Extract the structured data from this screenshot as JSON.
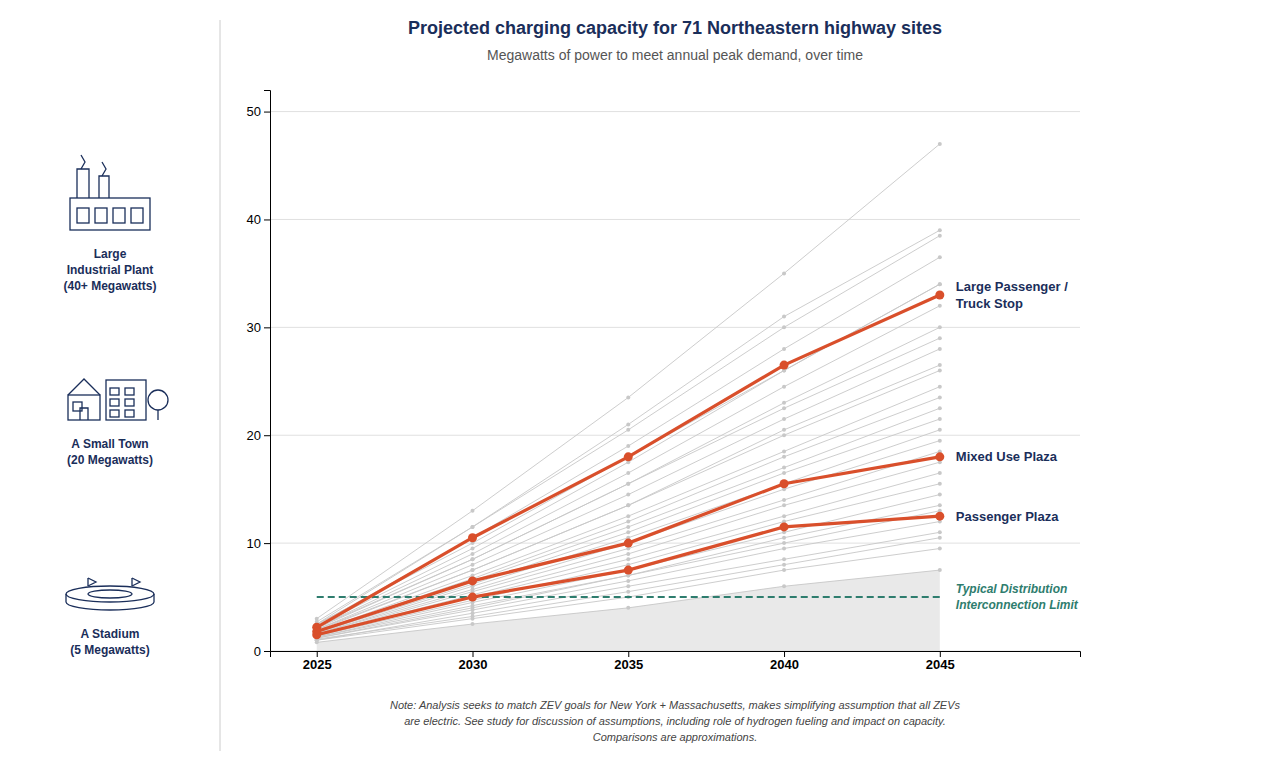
{
  "chart_data": {
    "type": "line",
    "title": "Projected charging capacity for 71 Northeastern highway sites",
    "subtitle": "Megawatts of power to meet annual peak demand, over time",
    "note": "Note: Analysis seeks to match ZEV goals for New York + Massachusetts, makes simplifying assumption that all ZEVs\nare electric. See study for discussion of assumptions, including role of hydrogen fueling and impact on capacity.\nComparisons are approximations.",
    "annotations": [
      "Large\nIndustrial Plant\n(40+ Megawatts)",
      "A Small Town\n(20 Megawatts)",
      "A Stadium\n(5 Megawatts)"
    ],
    "x": [
      2025,
      2030,
      2035,
      2040,
      2045
    ],
    "xlim": [
      2023.5,
      2049.5
    ],
    "xticks": [
      2025,
      2030,
      2035,
      2040,
      2045
    ],
    "ylim": [
      0,
      52
    ],
    "yticks": [
      0,
      10,
      20,
      30,
      40,
      50
    ],
    "grid": true,
    "series": [
      {
        "color": "#c8c8c8",
        "marker": "circle",
        "values": [
          1.0,
          3.5,
          6.0,
          8.5,
          11.0
        ]
      },
      {
        "color": "#c8c8c8",
        "marker": "circle",
        "values": [
          1.2,
          4.0,
          7.0,
          10.0,
          13.0
        ]
      },
      {
        "color": "#c8c8c8",
        "marker": "circle",
        "values": [
          1.3,
          4.5,
          7.5,
          11.0,
          14.5
        ]
      },
      {
        "color": "#c8c8c8",
        "marker": "circle",
        "values": [
          1.4,
          5.0,
          8.5,
          12.5,
          16.5
        ]
      },
      {
        "color": "#c8c8c8",
        "marker": "circle",
        "values": [
          1.5,
          5.5,
          9.5,
          14.0,
          18.5
        ]
      },
      {
        "color": "#c8c8c8",
        "marker": "circle",
        "values": [
          1.6,
          6.0,
          10.5,
          15.5,
          20.5
        ]
      },
      {
        "color": "#c8c8c8",
        "marker": "circle",
        "values": [
          1.7,
          6.5,
          11.5,
          17.0,
          22.5
        ]
      },
      {
        "color": "#c8c8c8",
        "marker": "circle",
        "values": [
          1.8,
          7.0,
          12.5,
          18.5,
          24.5
        ]
      },
      {
        "color": "#c8c8c8",
        "marker": "circle",
        "values": [
          1.9,
          7.5,
          13.5,
          20.0,
          26.0
        ]
      },
      {
        "color": "#c8c8c8",
        "marker": "circle",
        "values": [
          2.0,
          8.0,
          14.5,
          21.5,
          28.0
        ]
      },
      {
        "color": "#c8c8c8",
        "marker": "circle",
        "values": [
          2.1,
          8.5,
          15.5,
          23.0,
          30.0
        ]
      },
      {
        "color": "#c8c8c8",
        "marker": "circle",
        "values": [
          2.2,
          9.0,
          16.5,
          24.5,
          32.0
        ]
      },
      {
        "color": "#c8c8c8",
        "marker": "circle",
        "values": [
          2.3,
          9.5,
          17.5,
          26.0,
          34.0
        ]
      },
      {
        "color": "#c8c8c8",
        "marker": "circle",
        "values": [
          2.4,
          10.5,
          19.0,
          28.0,
          36.5
        ]
      },
      {
        "color": "#c8c8c8",
        "marker": "circle",
        "values": [
          2.5,
          11.5,
          20.5,
          30.0,
          38.5
        ]
      },
      {
        "color": "#c8c8c8",
        "marker": "circle",
        "values": [
          0.8,
          2.5,
          4.0,
          6.0,
          7.5
        ]
      },
      {
        "color": "#c8c8c8",
        "marker": "circle",
        "values": [
          1.0,
          3.0,
          5.0,
          7.5,
          9.5
        ]
      },
      {
        "color": "#c8c8c8",
        "marker": "circle",
        "values": [
          1.1,
          3.2,
          5.5,
          8.0,
          10.5
        ]
      },
      {
        "color": "#c8c8c8",
        "marker": "circle",
        "values": [
          1.2,
          3.8,
          6.5,
          9.5,
          12.0
        ]
      },
      {
        "color": "#c8c8c8",
        "marker": "circle",
        "values": [
          1.3,
          4.2,
          7.0,
          10.5,
          13.5
        ]
      },
      {
        "color": "#c8c8c8",
        "marker": "circle",
        "values": [
          1.4,
          4.7,
          8.0,
          12.0,
          15.5
        ]
      },
      {
        "color": "#c8c8c8",
        "marker": "circle",
        "values": [
          1.5,
          5.2,
          9.0,
          13.5,
          17.5
        ]
      },
      {
        "color": "#c8c8c8",
        "marker": "circle",
        "values": [
          1.6,
          5.7,
          10.0,
          15.0,
          19.5
        ]
      },
      {
        "color": "#c8c8c8",
        "marker": "circle",
        "values": [
          1.7,
          6.2,
          11.0,
          16.5,
          21.5
        ]
      },
      {
        "color": "#c8c8c8",
        "marker": "circle",
        "values": [
          1.8,
          6.7,
          12.0,
          18.0,
          23.5
        ]
      },
      {
        "color": "#c8c8c8",
        "marker": "circle",
        "values": [
          2.0,
          7.5,
          13.5,
          20.5,
          26.5
        ]
      },
      {
        "color": "#c8c8c8",
        "marker": "circle",
        "values": [
          2.2,
          8.5,
          15.5,
          22.5,
          29.0
        ]
      },
      {
        "color": "#c8c8c8",
        "marker": "circle",
        "values": [
          2.5,
          10.0,
          18.0,
          26.0,
          34.0
        ]
      },
      {
        "color": "#c8c8c8",
        "marker": "circle",
        "values": [
          3.0,
          13.0,
          23.5,
          35.0,
          47.0
        ]
      },
      {
        "color": "#c8c8c8",
        "marker": "circle",
        "values": [
          2.7,
          11.5,
          21.0,
          31.0,
          39.0
        ]
      },
      {
        "type": "area",
        "color": "#c8c8c8",
        "values": [
          0.8,
          2.5,
          4.0,
          6.0,
          7.5
        ]
      },
      {
        "name": "Typical Distribution\nInterconnection Limit",
        "color": "#2e7d6e",
        "line_style": "dashed",
        "values": [
          5.0,
          5.0,
          5.0,
          5.0,
          5.0
        ]
      },
      {
        "name": "Large Passenger /\nTruck Stop",
        "color": "#d94f2b",
        "marker": "circle",
        "values": [
          2.2,
          10.5,
          18.0,
          26.5,
          33.0
        ]
      },
      {
        "name": "Mixed Use Plaza",
        "color": "#d94f2b",
        "marker": "circle",
        "values": [
          1.8,
          6.5,
          10.0,
          15.5,
          18.0
        ]
      },
      {
        "name": "Passenger Plaza",
        "color": "#d94f2b",
        "marker": "circle",
        "values": [
          1.5,
          5.0,
          7.5,
          11.5,
          12.5
        ]
      }
    ]
  }
}
